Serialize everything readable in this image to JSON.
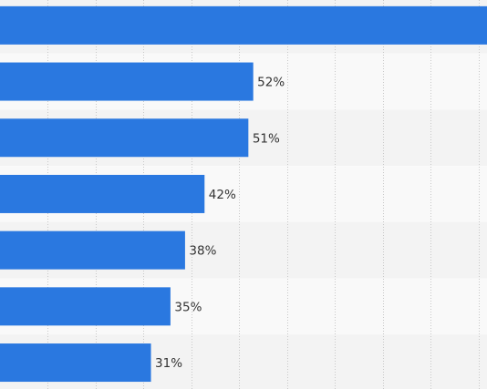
{
  "chart_data": {
    "type": "bar",
    "orientation": "horizontal",
    "values": [
      100,
      52,
      51,
      42,
      38,
      35,
      31
    ],
    "data_labels": [
      "",
      "52%",
      "51%",
      "42%",
      "38%",
      "35%",
      "31%"
    ],
    "xlim": [
      0,
      100
    ],
    "grid": true,
    "legend": "none",
    "colors": {
      "bar": "#2a78e0",
      "band_light": "#f9f9f9",
      "band_dark": "#f3f3f3",
      "grid": "#c8c8c8",
      "label": "#333333"
    }
  }
}
